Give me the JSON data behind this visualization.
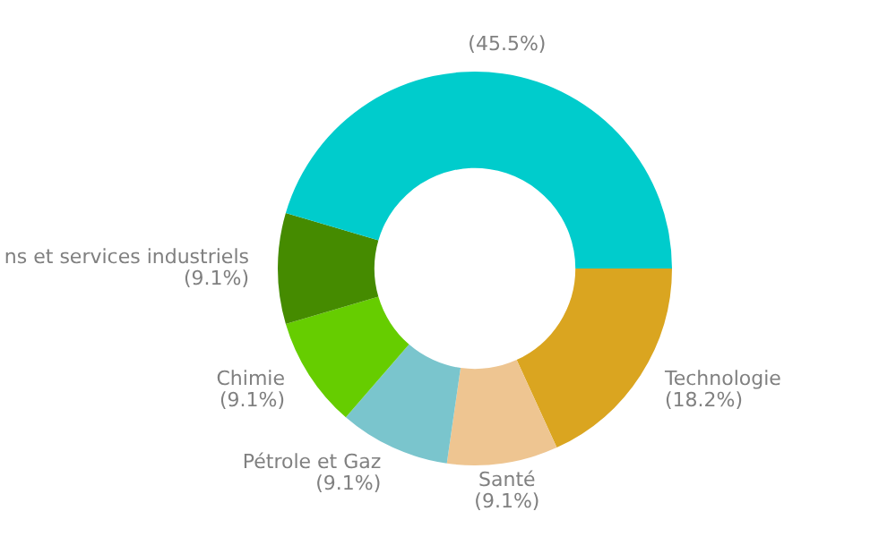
{
  "chart_data": {
    "type": "donut",
    "categories": [
      "Technologie",
      "Santé",
      "Pétrole et Gaz",
      "Chimie",
      "ns et services industriels",
      null
    ],
    "values": [
      18.2,
      9.1,
      9.1,
      9.1,
      9.1,
      45.5
    ],
    "value_labels": [
      "(18.2%)",
      "(9.1%)",
      "(9.1%)",
      "(9.1%)",
      "(9.1%)",
      "(45.5%)"
    ],
    "colors": [
      "#daa520",
      "#eec591",
      "#7ac5cd",
      "#66cd00",
      "#458b00",
      "#00cccc"
    ],
    "legend": false
  }
}
